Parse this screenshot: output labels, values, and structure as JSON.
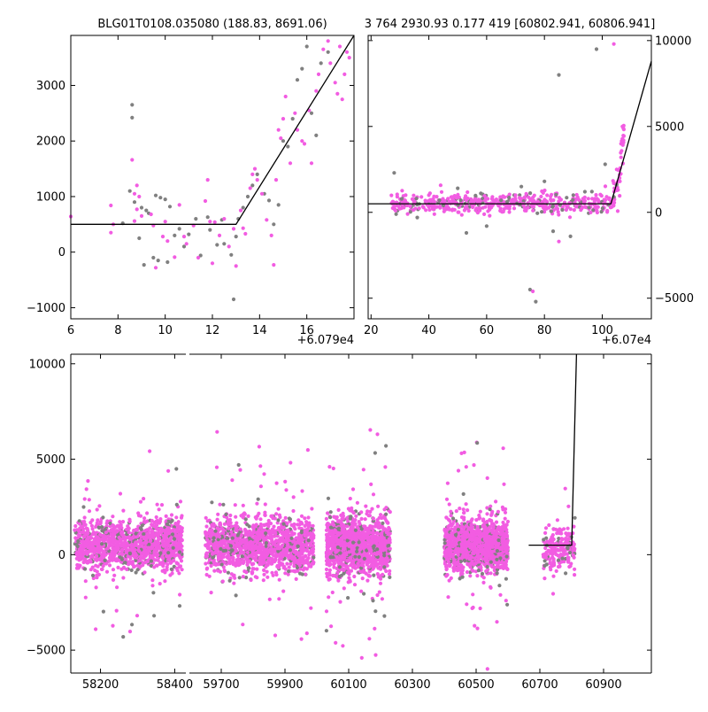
{
  "colors": {
    "gray_points": "#808080",
    "pink_points": "#f25ce2",
    "model_line": "#000000",
    "background": "#ffffff"
  },
  "chart_data": [
    {
      "type": "scatter",
      "title": "BLG01T0108.035080 (188.83, 8691.06)",
      "x_offset_label": "+6.079e4",
      "xlim": [
        6,
        18
      ],
      "ylim": [
        -1200,
        3900
      ],
      "xticks": [
        "6",
        "8",
        "10",
        "12",
        "14",
        "16"
      ],
      "yticks": [
        "−1000",
        "0",
        "1000",
        "2000",
        "3000"
      ],
      "y_axis_side": "left",
      "series": [
        {
          "role": "data_gray",
          "points": [
            [
              8.6,
              2650
            ],
            [
              8.6,
              2420
            ],
            [
              8.5,
              1100
            ],
            [
              8.7,
              900
            ],
            [
              9.0,
              800
            ],
            [
              9.2,
              750
            ],
            [
              9.6,
              1020
            ],
            [
              9.8,
              980
            ],
            [
              10.0,
              950
            ],
            [
              10.2,
              820
            ],
            [
              9.3,
              700
            ],
            [
              8.2,
              520
            ],
            [
              8.9,
              250
            ],
            [
              9.5,
              -100
            ],
            [
              9.7,
              -150
            ],
            [
              10.1,
              -180
            ],
            [
              10.4,
              300
            ],
            [
              10.6,
              420
            ],
            [
              11.0,
              320
            ],
            [
              11.3,
              600
            ],
            [
              11.5,
              -60
            ],
            [
              11.9,
              400
            ],
            [
              12.2,
              130
            ],
            [
              12.5,
              150
            ],
            [
              12.8,
              -50
            ],
            [
              13.0,
              280
            ],
            [
              13.1,
              600
            ],
            [
              13.3,
              800
            ],
            [
              13.5,
              1000
            ],
            [
              13.7,
              1200
            ],
            [
              13.9,
              1400
            ],
            [
              14.2,
              1050
            ],
            [
              14.4,
              930
            ],
            [
              14.6,
              500
            ],
            [
              14.8,
              850
            ],
            [
              15.0,
              2000
            ],
            [
              15.2,
              1900
            ],
            [
              15.4,
              2400
            ],
            [
              15.6,
              3100
            ],
            [
              15.8,
              3300
            ],
            [
              16.0,
              3700
            ],
            [
              16.2,
              2500
            ],
            [
              16.4,
              2100
            ],
            [
              16.6,
              3400
            ],
            [
              16.9,
              3600
            ],
            [
              12.9,
              -850
            ],
            [
              12.4,
              580
            ],
            [
              11.8,
              630
            ],
            [
              10.8,
              100
            ],
            [
              9.1,
              -230
            ]
          ]
        },
        {
          "role": "data_pink",
          "points": [
            [
              6.0,
              640
            ],
            [
              7.7,
              840
            ],
            [
              7.8,
              500
            ],
            [
              7.7,
              350
            ],
            [
              8.6,
              1660
            ],
            [
              8.7,
              1050
            ],
            [
              8.8,
              1200
            ],
            [
              8.9,
              1000
            ],
            [
              8.8,
              770
            ],
            [
              9.0,
              650
            ],
            [
              8.7,
              560
            ],
            [
              9.4,
              680
            ],
            [
              9.5,
              480
            ],
            [
              9.6,
              -280
            ],
            [
              9.9,
              280
            ],
            [
              10.0,
              550
            ],
            [
              10.1,
              200
            ],
            [
              10.4,
              -90
            ],
            [
              10.6,
              850
            ],
            [
              10.8,
              280
            ],
            [
              10.9,
              150
            ],
            [
              11.2,
              480
            ],
            [
              11.4,
              -100
            ],
            [
              11.7,
              920
            ],
            [
              11.8,
              1300
            ],
            [
              11.9,
              550
            ],
            [
              12.0,
              -200
            ],
            [
              12.3,
              300
            ],
            [
              12.5,
              600
            ],
            [
              12.7,
              100
            ],
            [
              12.9,
              420
            ],
            [
              13.0,
              -250
            ],
            [
              13.2,
              750
            ],
            [
              13.4,
              330
            ],
            [
              13.6,
              1150
            ],
            [
              13.7,
              1400
            ],
            [
              13.8,
              1500
            ],
            [
              13.9,
              1300
            ],
            [
              14.1,
              1050
            ],
            [
              14.3,
              580
            ],
            [
              14.5,
              300
            ],
            [
              14.6,
              -230
            ],
            [
              14.7,
              1300
            ],
            [
              14.8,
              2200
            ],
            [
              14.9,
              2050
            ],
            [
              15.0,
              2400
            ],
            [
              15.1,
              2800
            ],
            [
              15.3,
              1600
            ],
            [
              15.5,
              2500
            ],
            [
              15.6,
              2200
            ],
            [
              15.8,
              2000
            ],
            [
              15.9,
              1950
            ],
            [
              16.1,
              2550
            ],
            [
              16.2,
              1600
            ],
            [
              16.4,
              2900
            ],
            [
              16.5,
              3200
            ],
            [
              16.7,
              3650
            ],
            [
              16.9,
              3800
            ],
            [
              17.0,
              3400
            ],
            [
              17.2,
              3050
            ],
            [
              17.3,
              2850
            ],
            [
              17.4,
              3700
            ],
            [
              17.5,
              2750
            ],
            [
              17.6,
              3200
            ],
            [
              17.7,
              3600
            ],
            [
              17.8,
              3500
            ],
            [
              13.3,
              430
            ],
            [
              12.1,
              540
            ]
          ]
        }
      ],
      "model_line": [
        [
          6,
          500
        ],
        [
          13,
          500
        ],
        [
          18,
          3900
        ]
      ]
    },
    {
      "type": "scatter",
      "title": "3 764 2930.93 0.177 419 [60802.941, 60806.941]",
      "x_offset_label": "+6.07e4",
      "xlim": [
        19,
        117
      ],
      "ylim": [
        -6200,
        10300
      ],
      "xticks": [
        "20",
        "40",
        "60",
        "80",
        "100"
      ],
      "yticks": [
        "−5000",
        "0",
        "5000",
        "10000"
      ],
      "y_axis_side": "right",
      "series": [
        {
          "role": "data_gray",
          "points": [
            [
              28,
              2300
            ],
            [
              36,
              -300
            ],
            [
              45,
              400
            ],
            [
              53,
              -1200
            ],
            [
              60,
              -800
            ],
            [
              65,
              700
            ],
            [
              72,
              1500
            ],
            [
              75,
              -4500
            ],
            [
              77,
              -5200
            ],
            [
              80,
              1800
            ],
            [
              83,
              -1100
            ],
            [
              85,
              8000
            ],
            [
              89,
              -1400
            ],
            [
              94,
              1200
            ],
            [
              98,
              9500
            ],
            [
              101,
              2800
            ],
            [
              50,
              1400
            ],
            [
              58,
              1100
            ],
            [
              90,
              1000
            ],
            [
              104,
              900
            ],
            [
              105,
              1600
            ]
          ]
        },
        {
          "role": "data_pink",
          "points": [
            [
              76,
              -4600
            ],
            [
              85,
              -1700
            ],
            [
              104,
              9800
            ],
            [
              105,
              2500
            ],
            [
              106,
              2000
            ],
            [
              106.5,
              3200
            ],
            [
              107,
              5000
            ],
            [
              107.3,
              4900
            ],
            [
              105.5,
              1300
            ],
            [
              103,
              600
            ],
            [
              70,
              1000
            ],
            [
              62,
              900
            ],
            [
              48,
              900
            ],
            [
              40,
              1000
            ],
            [
              32,
              1000
            ]
          ]
        }
      ],
      "band": {
        "y_center": 500,
        "spread": 450,
        "x_from": 27,
        "x_to": 103
      },
      "model_line": [
        [
          19,
          500
        ],
        [
          103,
          500
        ],
        [
          117,
          8800
        ]
      ]
    },
    {
      "type": "scatter",
      "title": "",
      "xlim_segments": [
        [
          58120,
          58430
        ],
        [
          59600,
          61050
        ]
      ],
      "ylim": [
        -6200,
        10500
      ],
      "xticks": [
        "58200",
        "58400",
        "59700",
        "59900",
        "60100",
        "60300",
        "60500",
        "60700",
        "60900"
      ],
      "yticks": [
        "−5000",
        "0",
        "5000",
        "10000"
      ],
      "y_axis_side": "both",
      "seasons": [
        {
          "x_from": 58130,
          "x_to": 58420,
          "y_center": 500,
          "spread": 650
        },
        {
          "x_from": 59650,
          "x_to": 59990,
          "y_center": 450,
          "spread": 700
        },
        {
          "x_from": 60030,
          "x_to": 60230,
          "y_center": 450,
          "spread": 700
        },
        {
          "x_from": 60400,
          "x_to": 60600,
          "y_center": 450,
          "spread": 650
        },
        {
          "x_from": 60710,
          "x_to": 60810,
          "y_center": 350,
          "spread": 550
        }
      ],
      "model_line": [
        [
          60665,
          500
        ],
        [
          60800,
          500
        ],
        [
          60815,
          10500
        ]
      ]
    }
  ]
}
